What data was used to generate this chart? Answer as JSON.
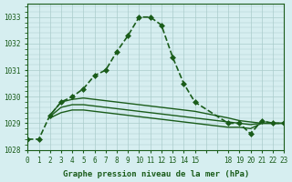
{
  "bg_color": "#d6eef0",
  "grid_color": "#aacccc",
  "line_color": "#1a5c1a",
  "title": "Graphe pression niveau de la mer (hPa)",
  "xlim": [
    0,
    23
  ],
  "ylim": [
    1028,
    1033.5
  ],
  "yticks": [
    1028,
    1029,
    1030,
    1031,
    1032,
    1033
  ],
  "xtick_labels": [
    "0",
    "1",
    "2",
    "3",
    "4",
    "5",
    "6",
    "7",
    "8",
    "9",
    "10",
    "11",
    "12",
    "13",
    "14",
    "15",
    "",
    "",
    "18",
    "19",
    "20",
    "21",
    "22",
    "23"
  ],
  "series": [
    {
      "x": [
        0,
        1,
        2,
        3,
        4,
        5,
        6,
        7,
        8,
        9,
        10,
        11,
        12,
        13,
        14,
        15,
        18,
        19,
        20,
        21,
        22,
        23
      ],
      "y": [
        1028.4,
        1028.4,
        1029.3,
        1029.8,
        1030.0,
        1030.3,
        1030.8,
        1031.0,
        1031.7,
        1032.3,
        1033.0,
        1033.0,
        1032.7,
        1031.5,
        1030.5,
        1029.8,
        1029.0,
        1029.0,
        1028.6,
        1029.1,
        1029.0,
        1029.0
      ],
      "marker": "D",
      "markersize": 3,
      "linewidth": 1.2,
      "linestyle": "--"
    },
    {
      "x": [
        2,
        3,
        4,
        5,
        6,
        7,
        8,
        9,
        10,
        11,
        12,
        13,
        14,
        15,
        18,
        19,
        20,
        21,
        22,
        23
      ],
      "y": [
        1029.3,
        1029.8,
        1029.9,
        1029.95,
        1029.9,
        1029.85,
        1029.8,
        1029.75,
        1029.7,
        1029.65,
        1029.6,
        1029.55,
        1029.5,
        1029.45,
        1029.2,
        1029.1,
        1029.05,
        1029.0,
        1029.0,
        1029.0
      ],
      "marker": null,
      "markersize": 0,
      "linewidth": 1.0,
      "linestyle": "-"
    },
    {
      "x": [
        2,
        3,
        4,
        5,
        6,
        7,
        8,
        9,
        10,
        11,
        12,
        13,
        14,
        15,
        18,
        19,
        20,
        21,
        22,
        23
      ],
      "y": [
        1029.25,
        1029.6,
        1029.7,
        1029.7,
        1029.65,
        1029.6,
        1029.55,
        1029.5,
        1029.45,
        1029.4,
        1029.35,
        1029.3,
        1029.25,
        1029.2,
        1029.05,
        1029.0,
        1028.95,
        1029.0,
        1029.0,
        1029.0
      ],
      "marker": null,
      "markersize": 0,
      "linewidth": 1.0,
      "linestyle": "-"
    },
    {
      "x": [
        2,
        3,
        4,
        5,
        6,
        7,
        8,
        9,
        10,
        11,
        12,
        13,
        14,
        15,
        18,
        19,
        20,
        21,
        22,
        23
      ],
      "y": [
        1029.2,
        1029.4,
        1029.5,
        1029.5,
        1029.45,
        1029.4,
        1029.35,
        1029.3,
        1029.25,
        1029.2,
        1029.15,
        1029.1,
        1029.05,
        1029.0,
        1028.85,
        1028.85,
        1028.8,
        1029.0,
        1029.0,
        1029.0
      ],
      "marker": null,
      "markersize": 0,
      "linewidth": 1.0,
      "linestyle": "-"
    }
  ]
}
